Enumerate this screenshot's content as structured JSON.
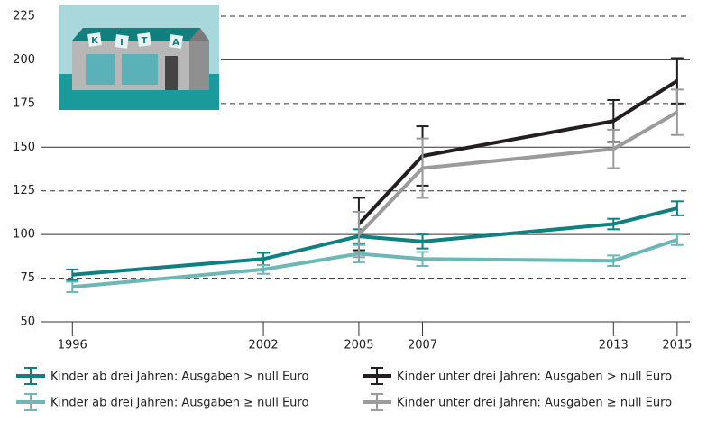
{
  "chart_data": {
    "type": "line",
    "illustration_text": [
      "K",
      "I",
      "T",
      "A"
    ],
    "x": [
      1996,
      2002,
      2005,
      2007,
      2013,
      2015
    ],
    "xlim": [
      1995,
      2015.4
    ],
    "xticks": [
      1996,
      2002,
      2005,
      2007,
      2013,
      2015
    ],
    "ylim": [
      50,
      225
    ],
    "yticks": [
      50,
      75,
      100,
      125,
      150,
      175,
      200,
      225
    ],
    "grid": true,
    "legend": "bottom",
    "series": [
      {
        "name": "Kinder ab drei Jahren: Ausgaben > null Euro",
        "color": "#0f8080",
        "values": [
          77,
          86,
          99,
          96,
          106,
          115
        ],
        "errors": [
          3,
          3.5,
          4,
          4,
          3,
          4
        ]
      },
      {
        "name": "Kinder ab drei Jahren: Ausgaben ≥ null Euro",
        "color": "#6db7b7",
        "values": [
          70,
          80,
          89,
          86,
          85,
          97
        ],
        "errors": [
          3,
          2.5,
          5,
          4,
          3,
          3
        ]
      },
      {
        "name": "Kinder unter drei Jahren: Ausgaben > null Euro",
        "color": "#231f20",
        "values": [
          null,
          null,
          106,
          145,
          165,
          188
        ],
        "errors": [
          null,
          null,
          15,
          17,
          12,
          13
        ]
      },
      {
        "name": "Kinder unter drei Jahren: Ausgaben ≥ null Euro",
        "color": "#9b9b9b",
        "values": [
          null,
          null,
          100,
          138,
          149,
          170
        ],
        "errors": [
          null,
          null,
          13,
          17,
          11,
          13
        ]
      }
    ]
  }
}
